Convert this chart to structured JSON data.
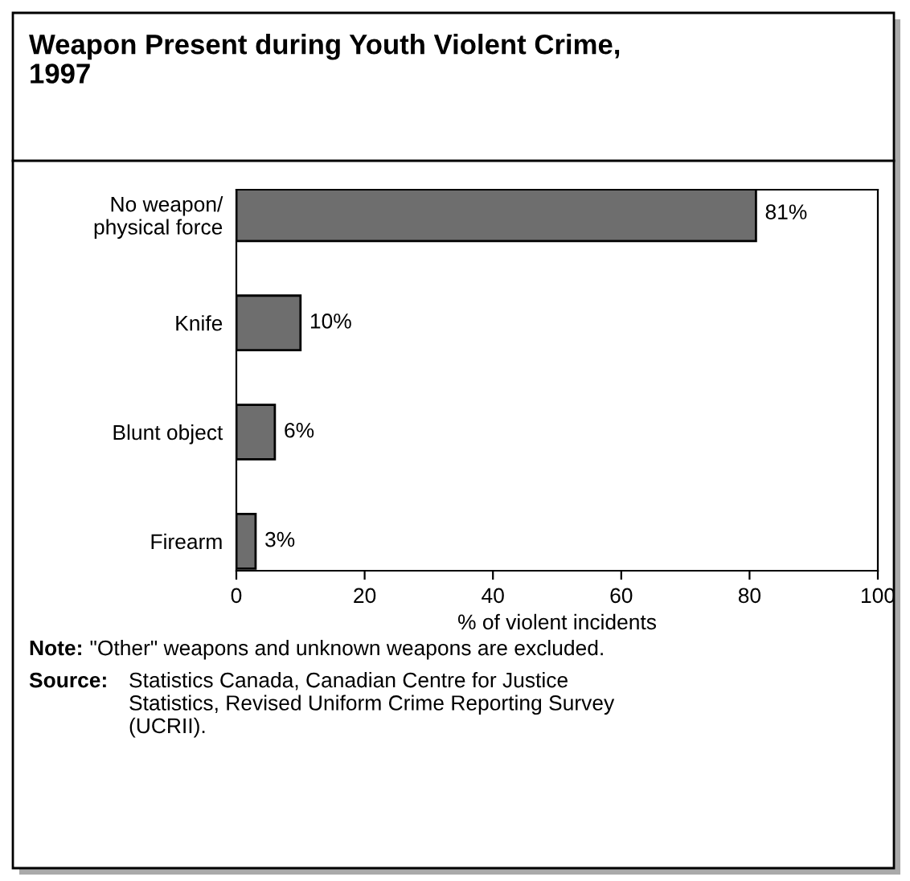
{
  "chart_data": {
    "type": "bar",
    "orientation": "horizontal",
    "title": "Weapon Present during Youth Violent Crime,\n1997",
    "categories": [
      "No weapon/\nphysical force",
      "Knife",
      "Blunt object",
      "Firearm"
    ],
    "values": [
      81,
      10,
      6,
      3
    ],
    "color": "#6e6e6e",
    "value_labels": [
      "81%",
      "10%",
      "6%",
      "3%"
    ],
    "xlim": [
      0,
      100
    ],
    "xticks": [
      0,
      20,
      40,
      60,
      80,
      100
    ],
    "xlabel": "% of violent incidents",
    "grid": false,
    "legend": false,
    "annotations": [
      "Note: \"Other\" weapons and unknown weapons are excluded.",
      "Source: Statistics Canada, Canadian Centre for Justice\nStatistics, Revised Uniform Crime Reporting Survey\n(UCRII)."
    ]
  }
}
